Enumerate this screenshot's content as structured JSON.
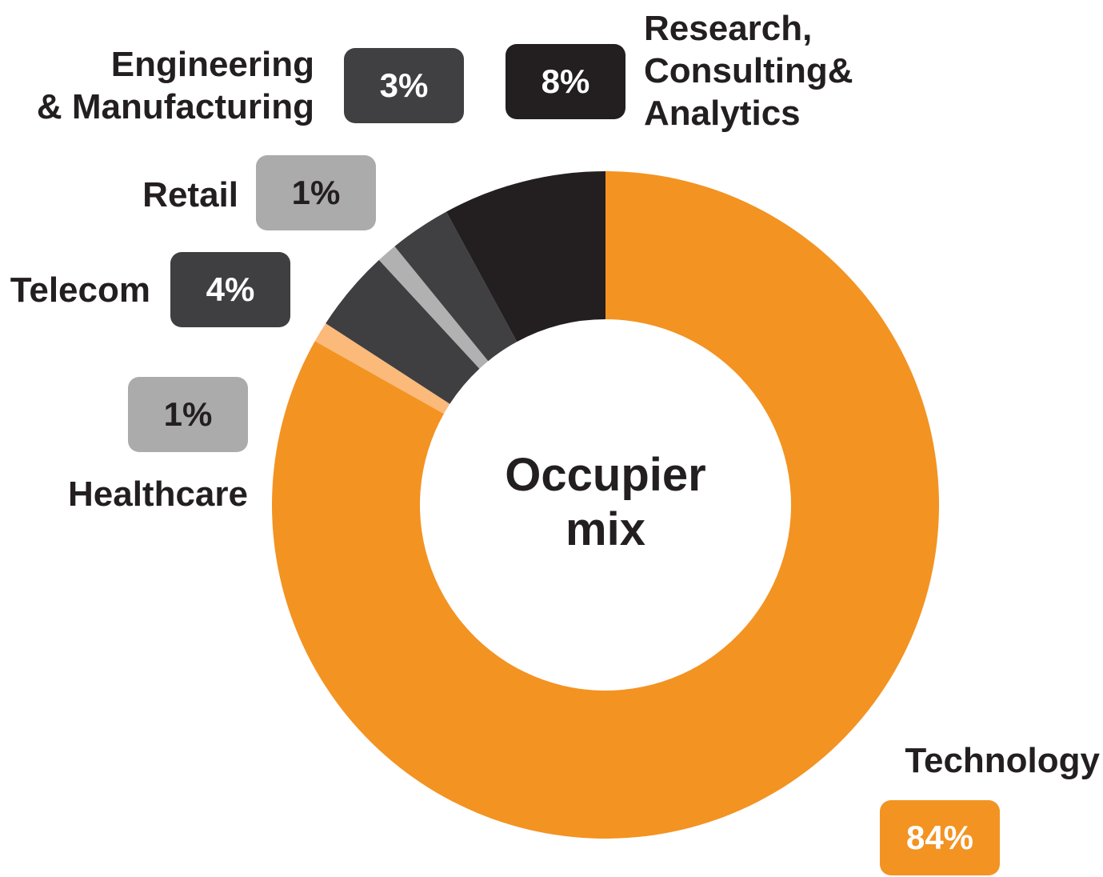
{
  "chart_data": {
    "type": "donut",
    "title": "Occupier\nmix",
    "categories": [
      "Technology",
      "Healthcare",
      "Telecom",
      "Retail",
      "Engineering\n& Manufacturing",
      "Research,\nConsulting&\nAnalytics"
    ],
    "values": [
      84,
      1,
      4,
      1,
      3,
      8
    ],
    "value_labels": [
      "84%",
      "1%",
      "4%",
      "1%",
      "3%",
      "8%"
    ],
    "colors": [
      "#f39322",
      "#fbb97a",
      "#3f3f41",
      "#b1b1b1",
      "#404042",
      "#231f20"
    ],
    "label_colors": [
      "#f39322",
      "#ababab",
      "#3f3f41",
      "#ababab",
      "#404042",
      "#231f20"
    ]
  }
}
